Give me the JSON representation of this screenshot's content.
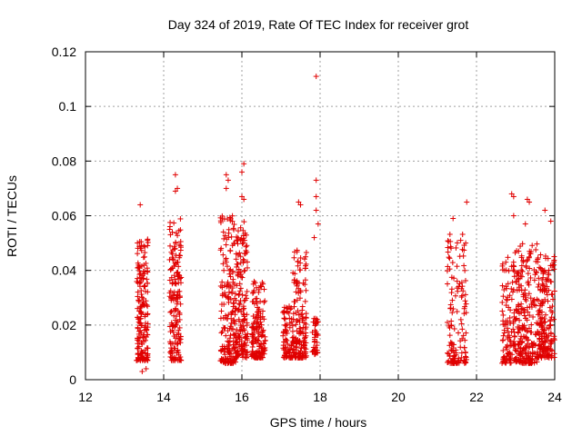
{
  "chart_data": {
    "type": "scatter",
    "title": "Day 324 of 2019, Rate Of TEC Index for receiver grot",
    "xlabel": "GPS time / hours",
    "ylabel": "ROTI / TECUs",
    "xlim": [
      12,
      24
    ],
    "ylim": [
      0,
      0.12
    ],
    "x_ticks": [
      "12",
      "14",
      "16",
      "18",
      "20",
      "22",
      "24"
    ],
    "y_ticks": [
      "0",
      "0.02",
      "0.04",
      "0.06",
      "0.08",
      "0.1",
      "0.12"
    ],
    "grid": true,
    "marker": "plus",
    "color": "#e00000",
    "outliers": [
      {
        "x": 13.4,
        "y": 0.064
      },
      {
        "x": 13.45,
        "y": 0.003
      },
      {
        "x": 13.55,
        "y": 0.004
      },
      {
        "x": 14.3,
        "y": 0.075
      },
      {
        "x": 14.3,
        "y": 0.069
      },
      {
        "x": 14.35,
        "y": 0.07
      },
      {
        "x": 15.6,
        "y": 0.075
      },
      {
        "x": 15.65,
        "y": 0.073
      },
      {
        "x": 15.6,
        "y": 0.07
      },
      {
        "x": 16.05,
        "y": 0.079
      },
      {
        "x": 16.0,
        "y": 0.076
      },
      {
        "x": 16.0,
        "y": 0.067
      },
      {
        "x": 16.05,
        "y": 0.066
      },
      {
        "x": 17.9,
        "y": 0.111
      },
      {
        "x": 17.9,
        "y": 0.073
      },
      {
        "x": 17.9,
        "y": 0.067
      },
      {
        "x": 17.9,
        "y": 0.062
      },
      {
        "x": 17.95,
        "y": 0.057
      },
      {
        "x": 17.85,
        "y": 0.052
      },
      {
        "x": 17.45,
        "y": 0.065
      },
      {
        "x": 17.5,
        "y": 0.064
      },
      {
        "x": 21.4,
        "y": 0.059
      },
      {
        "x": 21.75,
        "y": 0.065
      },
      {
        "x": 22.9,
        "y": 0.068
      },
      {
        "x": 22.95,
        "y": 0.067
      },
      {
        "x": 22.95,
        "y": 0.06
      },
      {
        "x": 23.3,
        "y": 0.066
      },
      {
        "x": 23.35,
        "y": 0.065
      },
      {
        "x": 23.25,
        "y": 0.057
      },
      {
        "x": 23.75,
        "y": 0.062
      },
      {
        "x": 23.9,
        "y": 0.058
      },
      {
        "x": 22.75,
        "y": 0.043
      }
    ],
    "clusters": [
      {
        "x0": 13.3,
        "x1": 13.6,
        "ylo": 0.007,
        "yhi": 0.052,
        "n": 180
      },
      {
        "x0": 14.15,
        "x1": 14.45,
        "ylo": 0.007,
        "yhi": 0.059,
        "n": 170
      },
      {
        "x0": 15.45,
        "x1": 15.85,
        "ylo": 0.006,
        "yhi": 0.06,
        "n": 200
      },
      {
        "x0": 15.85,
        "x1": 16.15,
        "ylo": 0.008,
        "yhi": 0.058,
        "n": 150
      },
      {
        "x0": 16.25,
        "x1": 16.6,
        "ylo": 0.008,
        "yhi": 0.036,
        "n": 150
      },
      {
        "x0": 17.05,
        "x1": 17.3,
        "ylo": 0.008,
        "yhi": 0.027,
        "n": 80
      },
      {
        "x0": 17.3,
        "x1": 17.65,
        "ylo": 0.008,
        "yhi": 0.048,
        "n": 160
      },
      {
        "x0": 17.8,
        "x1": 17.95,
        "ylo": 0.009,
        "yhi": 0.023,
        "n": 40
      },
      {
        "x0": 21.25,
        "x1": 21.75,
        "ylo": 0.006,
        "yhi": 0.054,
        "n": 140
      },
      {
        "x0": 22.65,
        "x1": 23.1,
        "ylo": 0.006,
        "yhi": 0.048,
        "n": 160
      },
      {
        "x0": 23.1,
        "x1": 23.55,
        "ylo": 0.006,
        "yhi": 0.051,
        "n": 180
      },
      {
        "x0": 23.55,
        "x1": 24.0,
        "ylo": 0.008,
        "yhi": 0.046,
        "n": 200
      }
    ]
  }
}
